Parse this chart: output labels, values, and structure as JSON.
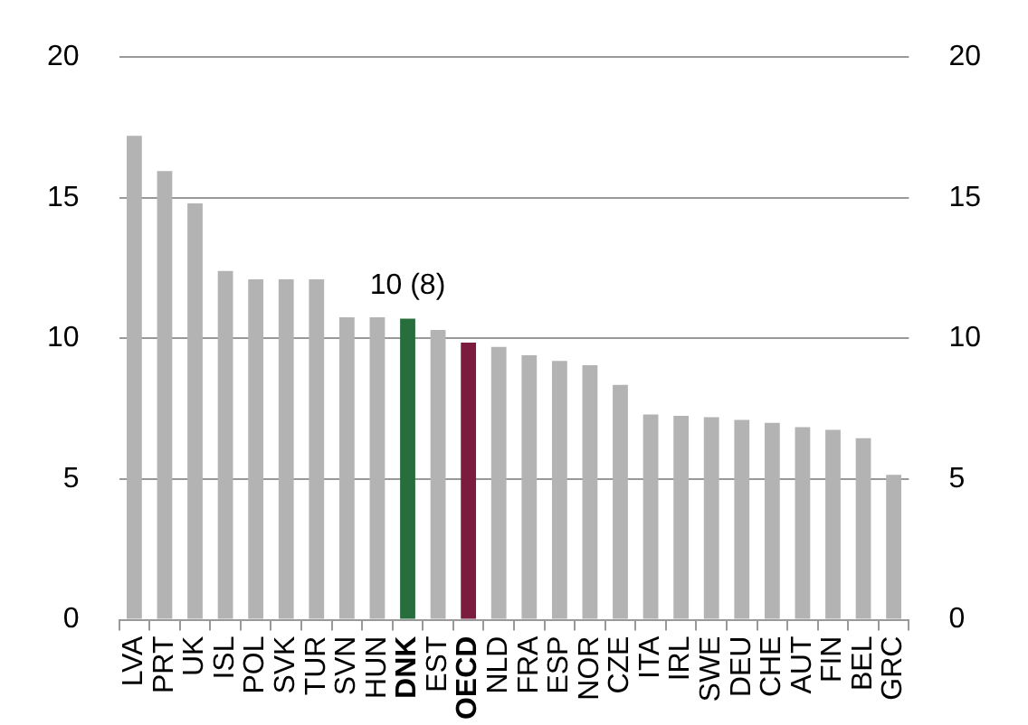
{
  "chart_data": {
    "type": "bar",
    "categories": [
      "LVA",
      "PRT",
      "UK",
      "ISL",
      "POL",
      "SVK",
      "TUR",
      "SVN",
      "HUN",
      "DNK",
      "EST",
      "OECD",
      "NLD",
      "FRA",
      "ESP",
      "NOR",
      "CZE",
      "ITA",
      "IRL",
      "SWE",
      "DEU",
      "CHE",
      "AUT",
      "FIN",
      "BEL",
      "GRC"
    ],
    "values": [
      17.2,
      15.95,
      14.8,
      12.4,
      12.1,
      12.1,
      12.1,
      10.75,
      10.75,
      10.7,
      10.3,
      9.85,
      9.7,
      9.4,
      9.2,
      9.05,
      8.35,
      7.3,
      7.25,
      7.2,
      7.1,
      7.0,
      6.85,
      6.75,
      6.45,
      5.15
    ],
    "colors": [
      "#b3b3b3",
      "#b3b3b3",
      "#b3b3b3",
      "#b3b3b3",
      "#b3b3b3",
      "#b3b3b3",
      "#b3b3b3",
      "#b3b3b3",
      "#b3b3b3",
      "#286d3c",
      "#b3b3b3",
      "#7b1c3e",
      "#b3b3b3",
      "#b3b3b3",
      "#b3b3b3",
      "#b3b3b3",
      "#b3b3b3",
      "#b3b3b3",
      "#b3b3b3",
      "#b3b3b3",
      "#b3b3b3",
      "#b3b3b3",
      "#b3b3b3",
      "#b3b3b3",
      "#b3b3b3",
      "#b3b3b3"
    ],
    "ylim": [
      0,
      20
    ],
    "yticks": [
      0,
      5,
      10,
      15,
      20
    ],
    "y2lim": [
      0,
      20
    ],
    "y2ticks": [
      0,
      5,
      10,
      15,
      20
    ],
    "grid": "y",
    "legend": false,
    "annotations": [
      {
        "text": "10 (8)",
        "x": "DNK",
        "y": 10.7
      }
    ]
  }
}
